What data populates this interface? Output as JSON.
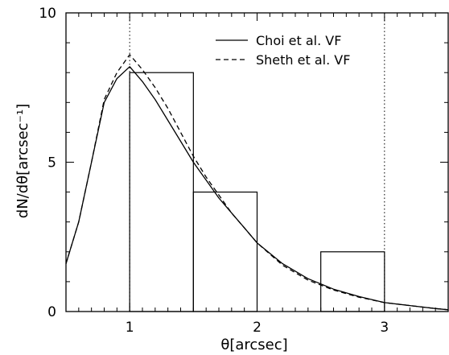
{
  "chart_data": {
    "type": "line",
    "xlabel": "θ[arcsec]",
    "ylabel": "dN/dθ[arcsec⁻¹]",
    "xlim": [
      0.5,
      3.5
    ],
    "ylim": [
      0,
      10
    ],
    "x_ticks": [
      1,
      2,
      3
    ],
    "y_ticks": [
      0,
      5,
      10
    ],
    "grid": false,
    "legend_position": "top-right",
    "reference_lines_x": [
      1,
      3
    ],
    "series": [
      {
        "name": "Choi et al. VF",
        "style": "solid",
        "x": [
          0.5,
          0.6,
          0.7,
          0.8,
          0.9,
          1.0,
          1.1,
          1.2,
          1.3,
          1.4,
          1.5,
          1.6,
          1.7,
          1.8,
          1.9,
          2.0,
          2.2,
          2.4,
          2.6,
          2.8,
          3.0,
          3.2,
          3.4,
          3.5
        ],
        "y": [
          1.6,
          3.0,
          5.0,
          7.0,
          7.8,
          8.2,
          7.7,
          7.1,
          6.4,
          5.7,
          5.0,
          4.4,
          3.8,
          3.3,
          2.8,
          2.3,
          1.6,
          1.1,
          0.75,
          0.5,
          0.3,
          0.2,
          0.1,
          0.06
        ]
      },
      {
        "name": "Sheth et al. VF",
        "style": "dashed",
        "x": [
          0.5,
          0.6,
          0.7,
          0.8,
          0.9,
          1.0,
          1.1,
          1.2,
          1.3,
          1.4,
          1.5,
          1.6,
          1.7,
          1.8,
          1.9,
          2.0,
          2.2,
          2.4,
          2.6,
          2.8,
          3.0,
          3.2,
          3.4,
          3.5
        ],
        "y": [
          1.6,
          3.0,
          5.0,
          7.1,
          8.0,
          8.6,
          8.1,
          7.5,
          6.8,
          6.0,
          5.2,
          4.5,
          3.9,
          3.3,
          2.8,
          2.3,
          1.55,
          1.05,
          0.72,
          0.48,
          0.3,
          0.2,
          0.1,
          0.06
        ]
      }
    ],
    "histogram": {
      "bin_edges": [
        0.5,
        1.0,
        1.5,
        2.0,
        2.5,
        3.0,
        3.5
      ],
      "counts": [
        0,
        8,
        4,
        0,
        2,
        0
      ]
    }
  }
}
